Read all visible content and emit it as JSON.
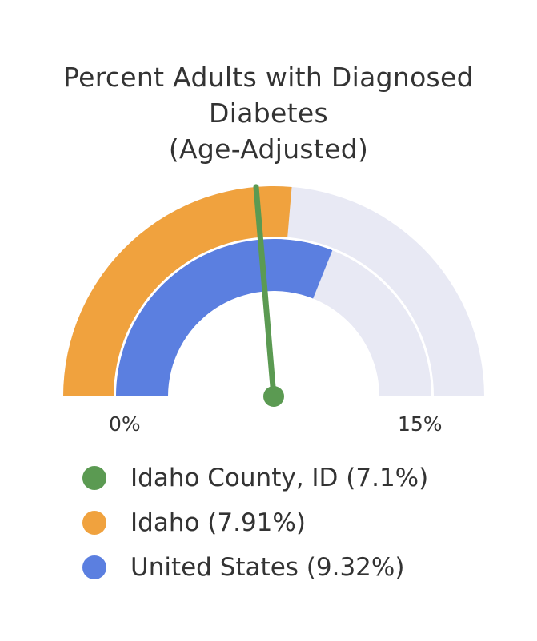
{
  "chart_data": {
    "type": "gauge",
    "title": "Percent Adults with Diagnosed Diabetes (Age-Adjusted)",
    "title_lines": [
      "Percent Adults with Diagnosed",
      "Diabetes",
      "(Age-Adjusted)"
    ],
    "min": 0,
    "max": 15,
    "min_label": "0%",
    "max_label": "15%",
    "series": [
      {
        "name": "Idaho County, ID (7.1%)",
        "value": 7.1,
        "display": "needle",
        "color": "#5b9a52"
      },
      {
        "name": "Idaho (7.91%)",
        "value": 7.91,
        "display": "outer-band",
        "color": "#f0a23e"
      },
      {
        "name": "United States (9.32%)",
        "value": 9.32,
        "display": "inner-band",
        "color": "#5b7fe0"
      }
    ],
    "track_color": "#e8e9f4",
    "legend_placement": "bottom-left"
  }
}
